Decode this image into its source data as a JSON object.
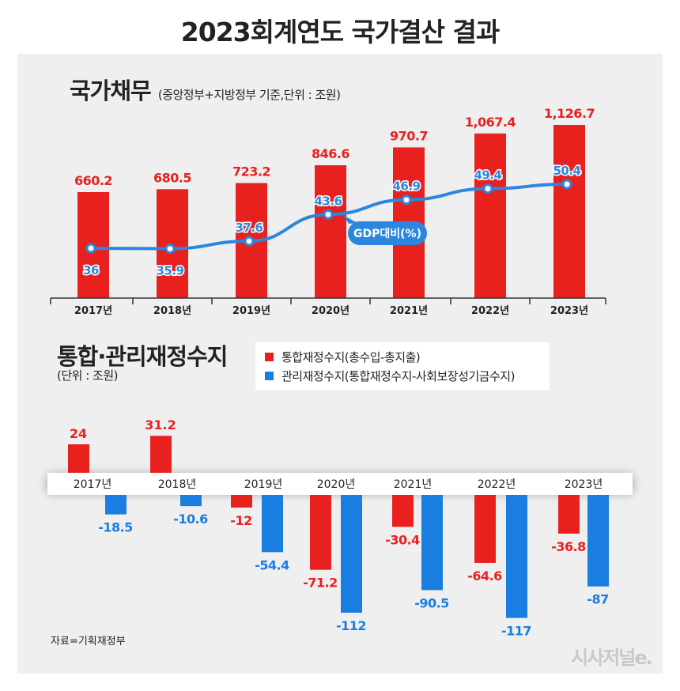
{
  "title": "2023회계연도 국가결산 결과",
  "source": "자료=기획재정부",
  "logo": "시사저널e.",
  "colors": {
    "red": "#e8211f",
    "blue": "#1a7ee0",
    "line": "#2a86de"
  },
  "chart_data": [
    {
      "type": "bar+line",
      "title": "국가채무",
      "subtitle": "(중앙정부+지방정부 기준,단위 : 조원)",
      "categories": [
        "2017년",
        "2018년",
        "2019년",
        "2020년",
        "2021년",
        "2022년",
        "2023년"
      ],
      "series": [
        {
          "name": "국가채무",
          "type": "bar",
          "values": [
            660.2,
            680.5,
            723.2,
            846.6,
            970.7,
            1067.4,
            1126.7
          ],
          "labels": [
            "660.2",
            "680.5",
            "723.2",
            "846.6",
            "970.7",
            "1,067.4",
            "1,126.7"
          ]
        },
        {
          "name": "GDP대비(%)",
          "type": "line",
          "values": [
            36,
            35.9,
            37.6,
            43.6,
            46.9,
            49.4,
            50.4
          ],
          "labels": [
            "36",
            "35.9",
            "37.6",
            "43.6",
            "46.9",
            "49.4",
            "50.4"
          ]
        }
      ]
    },
    {
      "type": "bar",
      "title": "통합·관리재정수지",
      "subtitle": "(단위 : 조원)",
      "categories": [
        "2017년",
        "2018년",
        "2019년",
        "2020년",
        "2021년",
        "2022년",
        "2023년"
      ],
      "series": [
        {
          "name": "통합재정수지(총수입-총지출)",
          "values": [
            24,
            31.2,
            -12,
            -71.2,
            -30.4,
            -64.6,
            -36.8
          ]
        },
        {
          "name": "관리재정수지(통합재정수지-사회보장성기금수지)",
          "values": [
            -18.5,
            -10.6,
            -54.4,
            -112,
            -90.5,
            -117,
            -87
          ]
        }
      ]
    }
  ]
}
